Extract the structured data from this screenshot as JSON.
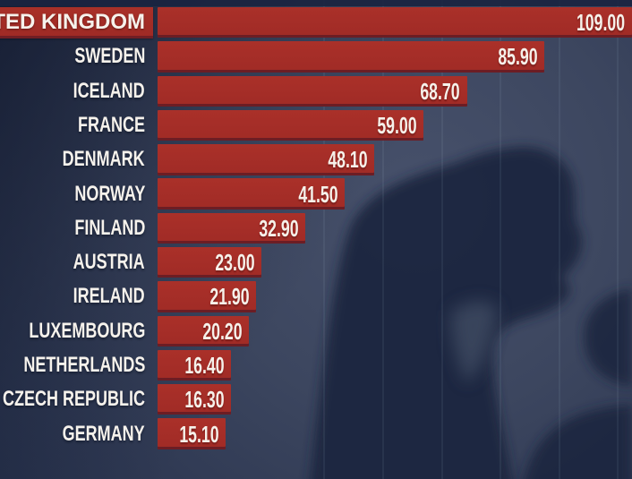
{
  "chart_data": {
    "type": "bar",
    "orientation": "horizontal",
    "title": "",
    "xlabel": "",
    "ylabel": "",
    "xlim": [
      0,
      112
    ],
    "grid": "faint-vertical-lines",
    "legend": "none",
    "categories": [
      "UNITED KINGDOM",
      "SWEDEN",
      "ICELAND",
      "FRANCE",
      "DENMARK",
      "NORWAY",
      "FINLAND",
      "AUSTRIA",
      "IRELAND",
      "LUXEMBOURG",
      "NETHERLANDS",
      "CZECH REPUBLIC",
      "GERMANY"
    ],
    "values": [
      109.0,
      85.9,
      68.7,
      59.0,
      48.1,
      41.5,
      32.9,
      23.0,
      21.9,
      20.2,
      16.4,
      16.3,
      15.1
    ],
    "bars": [
      {
        "label": "UNITED KINGDOM",
        "value": 109.0,
        "value_label": "109.00",
        "highlighted": true
      },
      {
        "label": "SWEDEN",
        "value": 85.9,
        "value_label": "85.90",
        "highlighted": false
      },
      {
        "label": "ICELAND",
        "value": 68.7,
        "value_label": "68.70",
        "highlighted": false
      },
      {
        "label": "FRANCE",
        "value": 59.0,
        "value_label": "59.00",
        "highlighted": false
      },
      {
        "label": "DENMARK",
        "value": 48.1,
        "value_label": "48.10",
        "highlighted": false
      },
      {
        "label": "NORWAY",
        "value": 41.5,
        "value_label": "41.50",
        "highlighted": false
      },
      {
        "label": "FINLAND",
        "value": 32.9,
        "value_label": "32.90",
        "highlighted": false
      },
      {
        "label": "AUSTRIA",
        "value": 23.0,
        "value_label": "23.00",
        "highlighted": false
      },
      {
        "label": "IRELAND",
        "value": 21.9,
        "value_label": "21.90",
        "highlighted": false
      },
      {
        "label": "LUXEMBOURG",
        "value": 20.2,
        "value_label": "20.20",
        "highlighted": false
      },
      {
        "label": "NETHERLANDS",
        "value": 16.4,
        "value_label": "16.40",
        "highlighted": false
      },
      {
        "label": "CZECH REPUBLIC",
        "value": 16.3,
        "value_label": "16.30",
        "highlighted": false
      },
      {
        "label": "GERMANY",
        "value": 15.1,
        "value_label": "15.10",
        "highlighted": false
      }
    ],
    "colors": {
      "bar": "#a52b26",
      "highlight_label_box": "#a52b26",
      "label_text": "#f6f2ec",
      "value_text": "#f6f1ea",
      "background_dark": "#212c47",
      "background_light": "#47516b",
      "silhouette": "#1c2741"
    },
    "background_image_description": "shadow silhouette of a person sitting with head on knees"
  }
}
